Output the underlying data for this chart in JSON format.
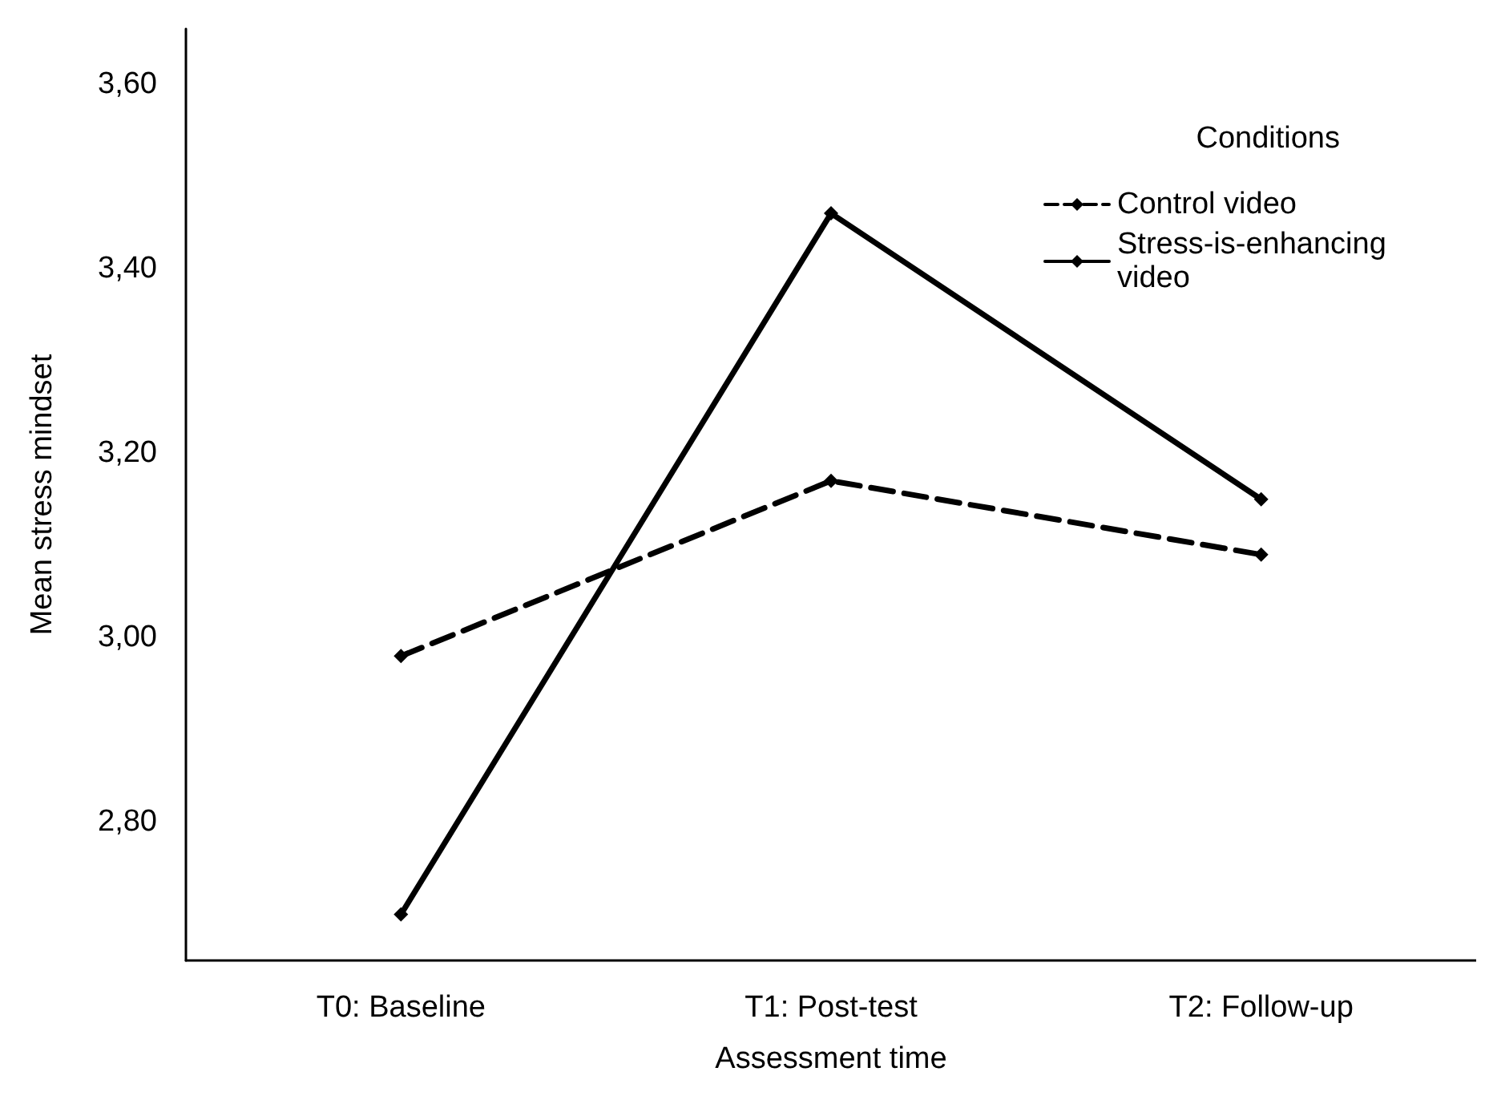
{
  "chart_data": {
    "type": "line",
    "xlabel": "Assessment time",
    "ylabel": "Mean stress mindset",
    "legend_title": "Conditions",
    "categories": [
      "T0: Baseline",
      "T1: Post-test",
      "T2: Follow-up"
    ],
    "series": [
      {
        "name": "Control video",
        "color": "#000000",
        "line_style": "dashed",
        "values": [
          2.98,
          3.17,
          3.09
        ]
      },
      {
        "name": "Stress-is-enhancing video",
        "color": "#000000",
        "line_style": "solid",
        "values": [
          2.7,
          3.46,
          3.15
        ]
      }
    ],
    "ylim": [
      2.65,
      3.66
    ],
    "yticks": [
      {
        "value": 2.8,
        "label": "2,80"
      },
      {
        "value": 3.0,
        "label": "3,00"
      },
      {
        "value": 3.2,
        "label": "3,20"
      },
      {
        "value": 3.4,
        "label": "3,40"
      },
      {
        "value": 3.6,
        "label": "3,60"
      }
    ],
    "marker": "diamond",
    "grid": false,
    "legend": "top right"
  }
}
